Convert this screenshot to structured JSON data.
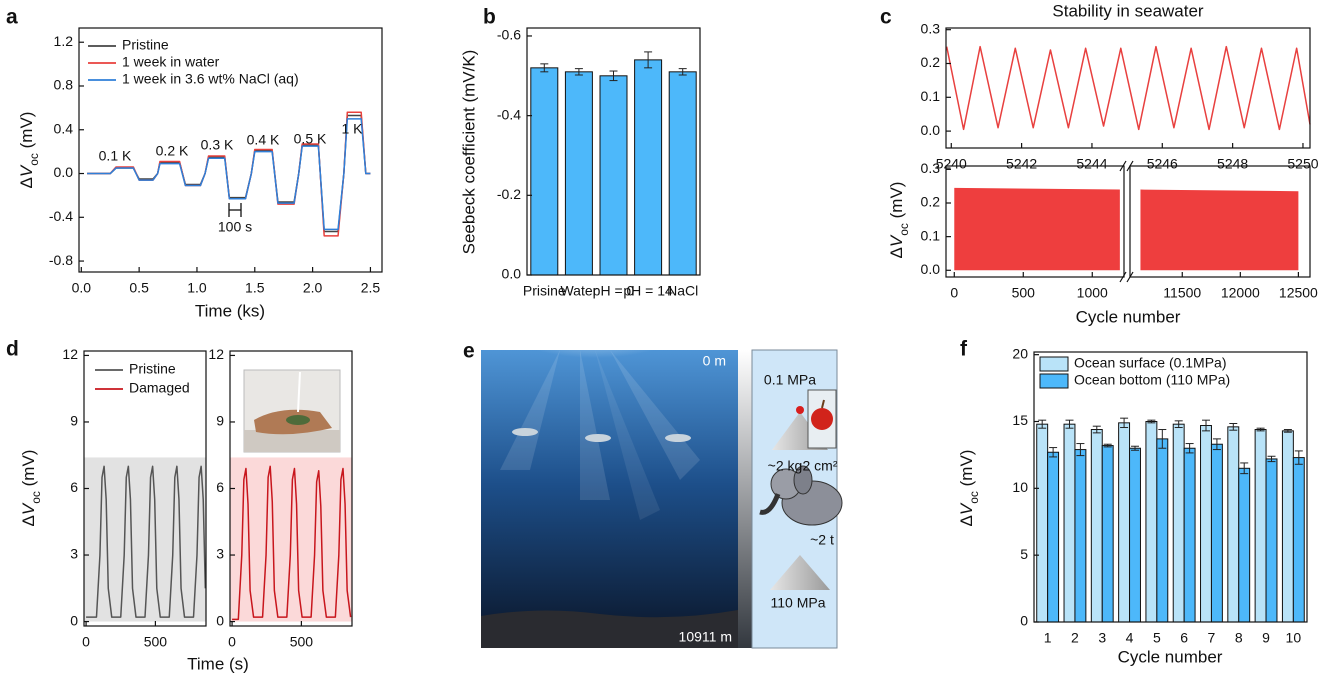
{
  "panel_e": {
    "panel": "e",
    "depth_top": "0 m",
    "depth_bottom": "10911 m",
    "surface_pressure": "0.1 MPa",
    "mass_small": "~2 kg",
    "area": "2 cm²",
    "mass_large": "~2 t",
    "bottom_pressure": "110 MPa"
  },
  "chart_data": [
    {
      "panel": "a",
      "type": "line",
      "xlabel": "Time (ks)",
      "ylabel": [
        "Δ",
        "V",
        "oc",
        " (mV)"
      ],
      "xlim": [
        -0.02,
        2.6
      ],
      "ylim": [
        -0.9,
        1.33
      ],
      "xticks": [
        {
          "value": 0,
          "label": "0.0"
        },
        0.5,
        {
          "value": 1,
          "label": "1.0"
        },
        1.5,
        {
          "value": 2,
          "label": "2.0"
        },
        2.5
      ],
      "yticks": [
        -0.8,
        -0.4,
        {
          "value": 0,
          "label": "0.0"
        },
        0.4,
        0.8,
        1.2
      ],
      "legend": "upper left",
      "annotations": [
        "0.1 K",
        "0.2 K",
        "0.3 K",
        "0.4 K",
        "0.5 K",
        "1 K",
        "100 s"
      ],
      "x": [
        0.05,
        0.25,
        0.3,
        0.45,
        0.5,
        0.62,
        0.66,
        0.68,
        0.85,
        0.9,
        1.03,
        1.07,
        1.1,
        1.24,
        1.28,
        1.42,
        1.47,
        1.5,
        1.65,
        1.7,
        1.84,
        1.88,
        1.91,
        2.05,
        2.1,
        2.22,
        2.27,
        2.3,
        2.42,
        2.46,
        2.5
      ],
      "series": [
        {
          "name": "Pristine",
          "color": "#444444",
          "values": [
            0,
            0,
            0.05,
            0.05,
            -0.05,
            -0.05,
            0,
            0.1,
            0.1,
            -0.1,
            -0.1,
            0,
            0.15,
            0.15,
            -0.22,
            -0.22,
            0,
            0.21,
            0.21,
            -0.26,
            -0.26,
            0,
            0.26,
            0.26,
            -0.53,
            -0.53,
            0,
            0.53,
            0.53,
            0,
            0
          ]
        },
        {
          "name": "1 week in water",
          "color": "#e8413d",
          "values": [
            0,
            0,
            0.06,
            0.06,
            -0.06,
            -0.06,
            0,
            0.11,
            0.11,
            -0.11,
            -0.11,
            0,
            0.16,
            0.16,
            -0.23,
            -0.23,
            0,
            0.22,
            0.22,
            -0.28,
            -0.28,
            0,
            0.27,
            0.27,
            -0.57,
            -0.57,
            0,
            0.56,
            0.56,
            0,
            0
          ]
        },
        {
          "name": "1 week in 3.6 wt% NaCl (aq)",
          "color": "#2f7fd8",
          "values": [
            0,
            0,
            0.05,
            0.05,
            -0.06,
            -0.06,
            0,
            0.09,
            0.09,
            -0.11,
            -0.11,
            0,
            0.14,
            0.14,
            -0.23,
            -0.23,
            0,
            0.2,
            0.2,
            -0.27,
            -0.27,
            0,
            0.25,
            0.25,
            -0.51,
            -0.51,
            0,
            0.5,
            0.5,
            0,
            0
          ]
        }
      ]
    },
    {
      "panel": "b",
      "type": "bar",
      "ylabel": "Seebeck coefficient (mV/K)",
      "categories": [
        "Prisine",
        "Water",
        "pH = 0",
        "pH = 14",
        "NaCl"
      ],
      "values": [
        -0.52,
        -0.51,
        -0.5,
        -0.54,
        -0.51
      ],
      "errors": [
        0.01,
        0.008,
        0.012,
        0.02,
        0.008
      ],
      "color": "#4db8fa",
      "ylim": [
        0,
        -0.62
      ],
      "yticks": [
        {
          "value": 0,
          "label": "0.0"
        },
        -0.2,
        -0.4,
        -0.6
      ]
    },
    {
      "panel": "c",
      "type": "line",
      "title": "Stability in seawater",
      "ylabel": [
        "Δ",
        "V",
        "oc",
        " (mV)"
      ],
      "xlim": [
        5239.85,
        5250.2
      ],
      "ylim": [
        -0.05,
        0.305
      ],
      "xticks": [
        5240,
        5242,
        5244,
        5246,
        5248,
        5250
      ],
      "yticks": [
        {
          "value": 0,
          "label": "0.0"
        },
        0.1,
        0.2,
        0.3
      ],
      "x": [
        5239.87,
        5240.35,
        5240.82,
        5241.33,
        5241.82,
        5242.33,
        5242.82,
        5243.33,
        5243.82,
        5244.33,
        5244.82,
        5245.33,
        5245.82,
        5246.33,
        5246.82,
        5247.33,
        5247.82,
        5248.33,
        5248.82,
        5249.33,
        5249.82,
        5250.2
      ],
      "series": [
        {
          "color": "#e8403f",
          "values": [
            0.25,
            0.005,
            0.25,
            0.01,
            0.245,
            0.01,
            0.24,
            0.01,
            0.245,
            0.015,
            0.245,
            0.005,
            0.25,
            0.01,
            0.245,
            0.005,
            0.25,
            0.01,
            0.245,
            0.005,
            0.245,
            0.02
          ]
        }
      ]
    },
    {
      "type": "band",
      "xlabel": "Cycle number",
      "xlim": [
        [
          -60,
          1230
        ],
        [
          11050,
          12600
        ]
      ],
      "ylim": [
        -0.02,
        0.31
      ],
      "xticks": [
        0,
        500,
        1000,
        11500,
        12000,
        12500
      ],
      "yticks": [
        {
          "value": 0,
          "label": "0.0"
        },
        0.1,
        0.2,
        0.3
      ],
      "x": [
        0,
        1200,
        11140,
        12500
      ],
      "series": [
        {
          "color": "#ee3e3e",
          "values": [
            0.245,
            0.24,
            0.24,
            0.235
          ],
          "low": [
            0,
            0,
            0,
            0
          ]
        }
      ]
    },
    {
      "panel": "d",
      "type": "line",
      "xlabel": "Time (s)",
      "ylabel": [
        "Δ",
        "V",
        "oc",
        " (mV)"
      ],
      "xlim": [
        -15,
        865
      ],
      "ylim": [
        -0.2,
        12.2
      ],
      "xticks": [
        0,
        500
      ],
      "yticks": [
        0,
        3,
        6,
        9,
        12
      ],
      "legend": "upper left",
      "highlight": {
        "range": [
          0,
          7.4
        ],
        "color": "#e2e2e2"
      },
      "x": [
        0,
        75,
        100,
        115,
        130,
        145,
        160,
        185,
        250,
        275,
        290,
        305,
        320,
        335,
        360,
        425,
        450,
        465,
        480,
        495,
        510,
        535,
        600,
        625,
        640,
        655,
        670,
        685,
        710,
        775,
        800,
        815,
        830,
        845,
        860
      ],
      "series": [
        {
          "name": "Pristine",
          "color": "#555555",
          "values": [
            0.2,
            0.2,
            3,
            6.5,
            7.0,
            5.5,
            1.5,
            0.2,
            0.2,
            3,
            6.5,
            7.0,
            5.5,
            1.5,
            0.2,
            0.2,
            3,
            6.5,
            7.0,
            5.5,
            1.5,
            0.2,
            0.2,
            3,
            6.5,
            7.0,
            5.5,
            1.5,
            0.2,
            0.2,
            3,
            6.5,
            7.0,
            5.5,
            1.5
          ]
        }
      ]
    },
    {
      "type": "line",
      "xlim": [
        -15,
        865
      ],
      "ylim": [
        -0.2,
        12.2
      ],
      "xticks": [
        0,
        500
      ],
      "yticks": [
        0,
        3,
        6,
        9,
        12
      ],
      "legend": "upper left",
      "highlight": {
        "range": [
          0,
          7.4
        ],
        "color": "#fbd9d9"
      },
      "x": [
        0,
        45,
        70,
        85,
        100,
        115,
        130,
        155,
        220,
        245,
        260,
        275,
        290,
        305,
        330,
        395,
        420,
        435,
        450,
        465,
        480,
        505,
        570,
        595,
        610,
        625,
        640,
        655,
        680,
        745,
        770,
        785,
        800,
        815,
        830,
        855
      ],
      "series": [
        {
          "name": "Damaged",
          "color": "#c8161d",
          "values": [
            0.1,
            0.1,
            3,
            6.4,
            6.9,
            5.3,
            1.4,
            0.2,
            0.2,
            3,
            6.5,
            7.0,
            5.4,
            1.4,
            0.2,
            0.2,
            3,
            6.4,
            6.9,
            5.3,
            1.4,
            0.2,
            0.2,
            3,
            6.3,
            6.8,
            5.2,
            1.4,
            0.2,
            0.2,
            3,
            6.4,
            6.9,
            5.3,
            1.4,
            0.2
          ]
        }
      ]
    },
    {
      "panel": "f",
      "type": "bar",
      "xlabel": "Cycle number",
      "ylabel": [
        "Δ",
        "V",
        "oc",
        " (mV)"
      ],
      "categories": [
        "1",
        "2",
        "3",
        "4",
        "5",
        "6",
        "7",
        "8",
        "9",
        "10"
      ],
      "ylim": [
        0,
        20.2
      ],
      "yticks": [
        0,
        5,
        10,
        15,
        20
      ],
      "legend": "upper left",
      "series": [
        {
          "name": "Ocean surface (0.1MPa)",
          "color": "#b9e3f8",
          "values": [
            14.8,
            14.8,
            14.4,
            14.9,
            15.0,
            14.8,
            14.7,
            14.6,
            14.4,
            14.3
          ],
          "errors": [
            0.3,
            0.3,
            0.25,
            0.35,
            0.1,
            0.25,
            0.4,
            0.25,
            0.1,
            0.1
          ]
        },
        {
          "name": "Ocean bottom (110 MPa)",
          "color": "#4db8fa",
          "values": [
            12.7,
            12.9,
            13.2,
            13.0,
            13.7,
            13.0,
            13.3,
            11.5,
            12.2,
            12.3
          ],
          "errors": [
            0.35,
            0.45,
            0.1,
            0.15,
            0.7,
            0.35,
            0.4,
            0.4,
            0.2,
            0.5
          ]
        }
      ]
    }
  ]
}
